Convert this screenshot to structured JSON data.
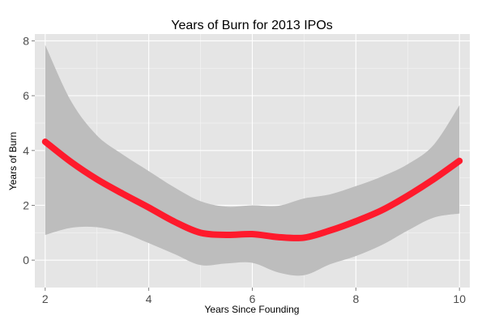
{
  "chart_data": {
    "type": "line",
    "title": "Years of Burn for 2013 IPOs",
    "xlabel": "Years Since Founding",
    "ylabel": "Years of Burn",
    "xlim": [
      1.8,
      10.2
    ],
    "ylim": [
      -1.0,
      8.25
    ],
    "xticks": [
      2,
      4,
      6,
      8,
      10
    ],
    "yticks": [
      0,
      2,
      4,
      6,
      8
    ],
    "grid": true,
    "legend": "none",
    "colors": {
      "panel": "#e5e5e5",
      "grid_major": "#ffffff",
      "grid_minor": "#f2f2f2",
      "band": "#bdbdbd",
      "line": "#ff1a2c",
      "tick_text": "#4d4d4d"
    },
    "series": [
      {
        "style": "loess-smooth",
        "x": [
          2.0,
          2.5,
          3.0,
          3.5,
          4.0,
          4.5,
          5.0,
          5.5,
          6.0,
          6.5,
          7.0,
          7.5,
          8.0,
          8.5,
          9.0,
          9.5,
          10.0
        ],
        "y": [
          4.32,
          3.58,
          2.95,
          2.42,
          1.92,
          1.4,
          1.0,
          0.92,
          0.95,
          0.84,
          0.82,
          1.08,
          1.42,
          1.82,
          2.35,
          2.95,
          3.62
        ],
        "lower": [
          0.92,
          1.18,
          1.2,
          1.0,
          0.62,
          0.22,
          -0.18,
          -0.12,
          -0.1,
          -0.45,
          -0.55,
          -0.15,
          0.15,
          0.55,
          1.08,
          1.55,
          1.7
        ],
        "upper": [
          7.85,
          5.8,
          4.55,
          3.85,
          3.25,
          2.65,
          2.15,
          1.95,
          2.0,
          1.98,
          2.25,
          2.4,
          2.7,
          3.05,
          3.5,
          4.2,
          5.65
        ]
      }
    ]
  }
}
